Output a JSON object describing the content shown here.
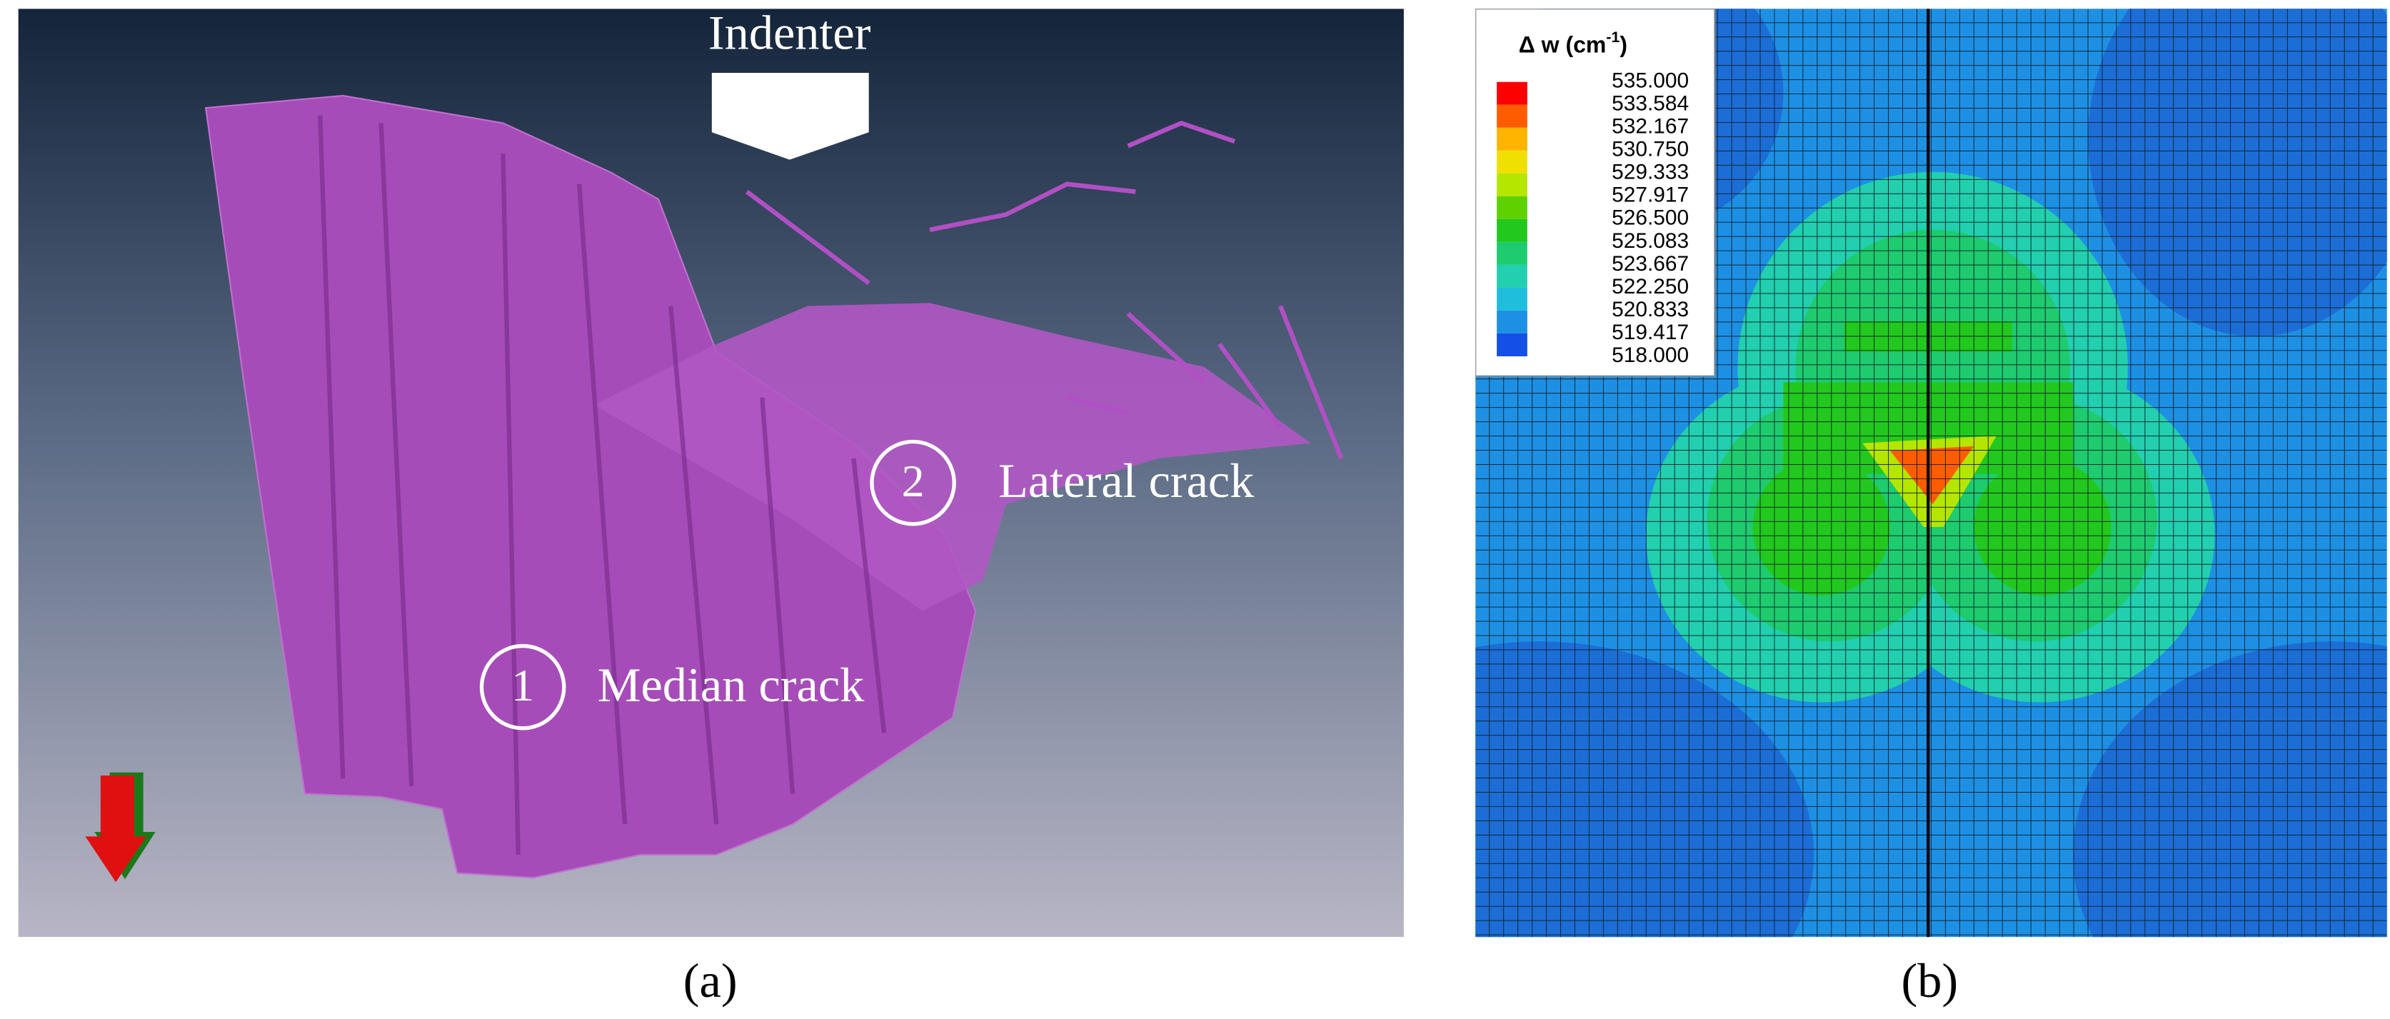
{
  "panel_a": {
    "indenter_label": "Indenter",
    "cracks": [
      {
        "number": "1",
        "label": "Median crack"
      },
      {
        "number": "2",
        "label": "Lateral crack"
      }
    ],
    "caption": "(a)"
  },
  "panel_b": {
    "legend": {
      "title": {
        "base": "Δ w (cm",
        "sup": "-1",
        "close": ")"
      },
      "labels": [
        "535.000",
        "533.584",
        "532.167",
        "530.750",
        "529.333",
        "527.917",
        "526.500",
        "525.083",
        "523.667",
        "522.250",
        "520.833",
        "519.417",
        "518.000"
      ],
      "band_colors": [
        "#ff0000",
        "#ff5c00",
        "#ffb400",
        "#f0e000",
        "#b4e600",
        "#5ed200",
        "#22c81e",
        "#1ecb6e",
        "#22cfae",
        "#1ebedc",
        "#1e90e4",
        "#1450e6"
      ]
    },
    "caption": "(b)"
  }
}
